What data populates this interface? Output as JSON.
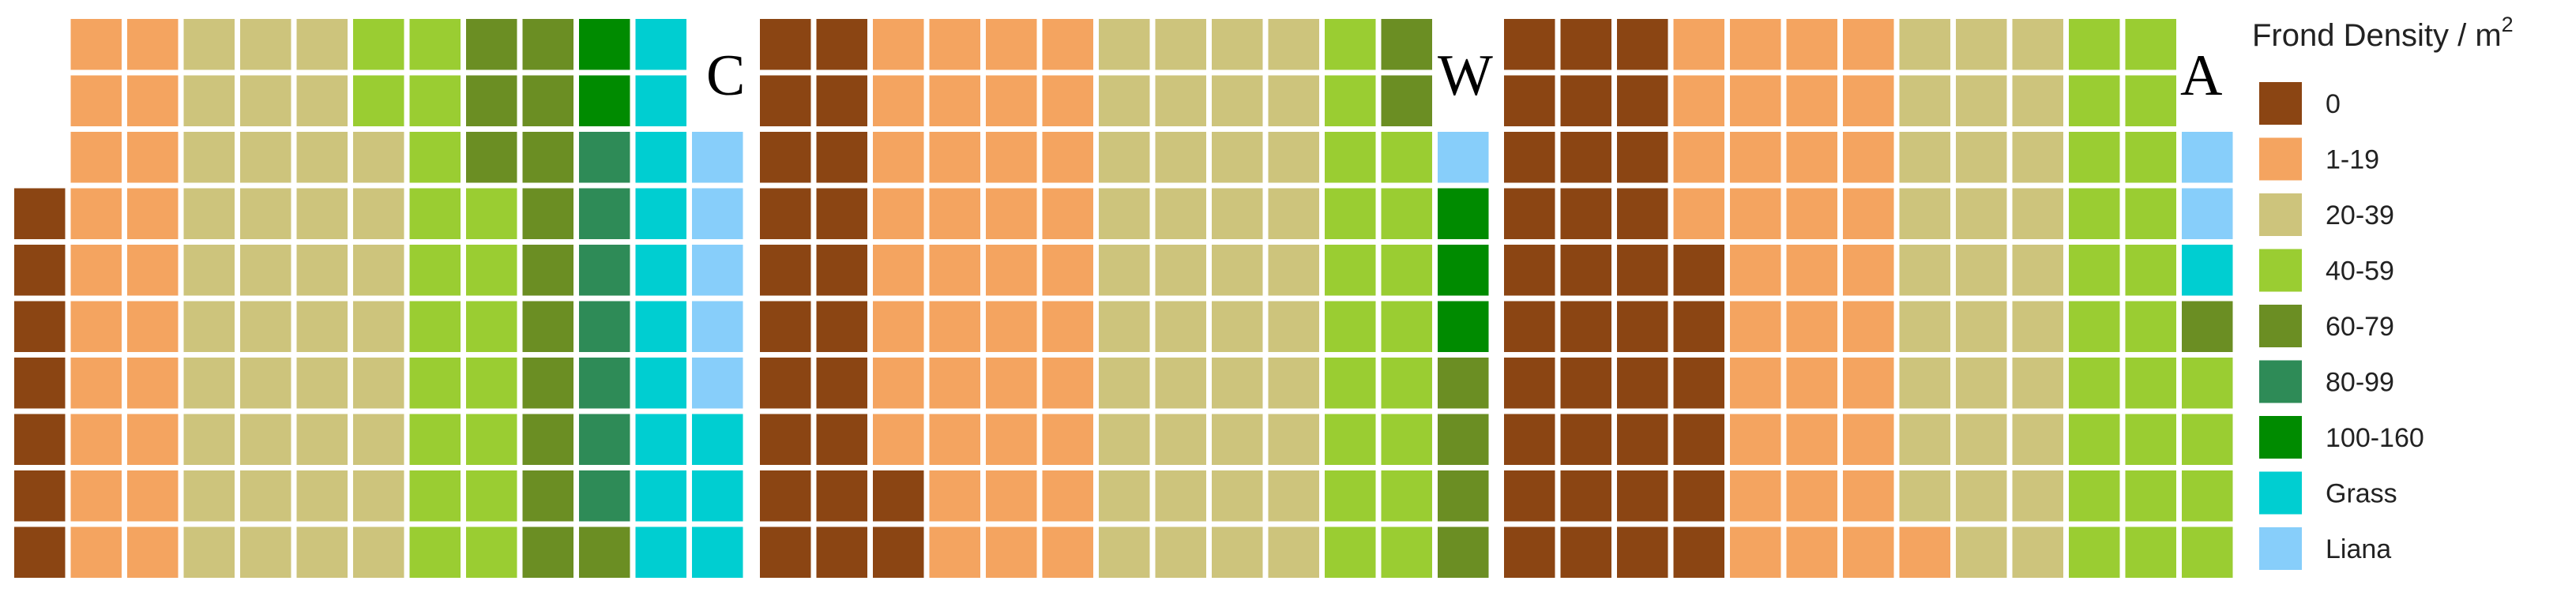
{
  "chart_data": {
    "type": "waffle",
    "legend": {
      "title": "Frond Density / m",
      "title_superscript": "2",
      "categories": [
        {
          "key": "0",
          "label": "0",
          "color": "#8B4513"
        },
        {
          "key": "1-19",
          "label": "1-19",
          "color": "#F4A460"
        },
        {
          "key": "20-39",
          "label": "20-39",
          "color": "#CDC47C"
        },
        {
          "key": "40-59",
          "label": "40-59",
          "color": "#9ACD32"
        },
        {
          "key": "60-79",
          "label": "60-79",
          "color": "#6B8E23"
        },
        {
          "key": "80-99",
          "label": "80-99",
          "color": "#2E8B57"
        },
        {
          "key": "100-160",
          "label": "100-160",
          "color": "#008B00"
        },
        {
          "key": "Grass",
          "label": "Grass",
          "color": "#00CED1"
        },
        {
          "key": "Liana",
          "label": "Liana",
          "color": "#87CEFA"
        }
      ]
    },
    "panels": [
      {
        "label": "C",
        "rows": 10,
        "columns": [
          [
            "",
            "",
            "",
            "0",
            "0",
            "0",
            "0",
            "0",
            "0",
            "0"
          ],
          [
            "1-19",
            "1-19",
            "1-19",
            "1-19",
            "1-19",
            "1-19",
            "1-19",
            "1-19",
            "1-19",
            "1-19"
          ],
          [
            "1-19",
            "1-19",
            "1-19",
            "1-19",
            "1-19",
            "1-19",
            "1-19",
            "1-19",
            "1-19",
            "1-19"
          ],
          [
            "20-39",
            "20-39",
            "20-39",
            "20-39",
            "20-39",
            "20-39",
            "20-39",
            "20-39",
            "20-39",
            "20-39"
          ],
          [
            "20-39",
            "20-39",
            "20-39",
            "20-39",
            "20-39",
            "20-39",
            "20-39",
            "20-39",
            "20-39",
            "20-39"
          ],
          [
            "20-39",
            "20-39",
            "20-39",
            "20-39",
            "20-39",
            "20-39",
            "20-39",
            "20-39",
            "20-39",
            "20-39"
          ],
          [
            "40-59",
            "40-59",
            "20-39",
            "20-39",
            "20-39",
            "20-39",
            "20-39",
            "20-39",
            "20-39",
            "20-39"
          ],
          [
            "40-59",
            "40-59",
            "40-59",
            "40-59",
            "40-59",
            "40-59",
            "40-59",
            "40-59",
            "40-59",
            "40-59"
          ],
          [
            "60-79",
            "60-79",
            "60-79",
            "40-59",
            "40-59",
            "40-59",
            "40-59",
            "40-59",
            "40-59",
            "40-59"
          ],
          [
            "60-79",
            "60-79",
            "60-79",
            "60-79",
            "60-79",
            "60-79",
            "60-79",
            "60-79",
            "60-79",
            "60-79"
          ],
          [
            "100-160",
            "100-160",
            "80-99",
            "80-99",
            "80-99",
            "80-99",
            "80-99",
            "80-99",
            "80-99",
            "60-79"
          ],
          [
            "Grass",
            "Grass",
            "Grass",
            "Grass",
            "Grass",
            "Grass",
            "Grass",
            "Grass",
            "Grass",
            "Grass"
          ],
          [
            "",
            "",
            "Liana",
            "Liana",
            "Liana",
            "Liana",
            "Liana",
            "Grass",
            "Grass",
            "Grass"
          ]
        ]
      },
      {
        "label": "W",
        "rows": 10,
        "columns": [
          [
            "0",
            "0",
            "0",
            "0",
            "0",
            "0",
            "0",
            "0",
            "0",
            "0"
          ],
          [
            "0",
            "0",
            "0",
            "0",
            "0",
            "0",
            "0",
            "0",
            "0",
            "0"
          ],
          [
            "1-19",
            "1-19",
            "1-19",
            "1-19",
            "1-19",
            "1-19",
            "1-19",
            "1-19",
            "0",
            "0"
          ],
          [
            "1-19",
            "1-19",
            "1-19",
            "1-19",
            "1-19",
            "1-19",
            "1-19",
            "1-19",
            "1-19",
            "1-19"
          ],
          [
            "1-19",
            "1-19",
            "1-19",
            "1-19",
            "1-19",
            "1-19",
            "1-19",
            "1-19",
            "1-19",
            "1-19"
          ],
          [
            "1-19",
            "1-19",
            "1-19",
            "1-19",
            "1-19",
            "1-19",
            "1-19",
            "1-19",
            "1-19",
            "1-19"
          ],
          [
            "20-39",
            "20-39",
            "20-39",
            "20-39",
            "20-39",
            "20-39",
            "20-39",
            "20-39",
            "20-39",
            "20-39"
          ],
          [
            "20-39",
            "20-39",
            "20-39",
            "20-39",
            "20-39",
            "20-39",
            "20-39",
            "20-39",
            "20-39",
            "20-39"
          ],
          [
            "20-39",
            "20-39",
            "20-39",
            "20-39",
            "20-39",
            "20-39",
            "20-39",
            "20-39",
            "20-39",
            "20-39"
          ],
          [
            "20-39",
            "20-39",
            "20-39",
            "20-39",
            "20-39",
            "20-39",
            "20-39",
            "20-39",
            "20-39",
            "20-39"
          ],
          [
            "40-59",
            "40-59",
            "40-59",
            "40-59",
            "40-59",
            "40-59",
            "40-59",
            "40-59",
            "40-59",
            "40-59"
          ],
          [
            "60-79",
            "60-79",
            "40-59",
            "40-59",
            "40-59",
            "40-59",
            "40-59",
            "40-59",
            "40-59",
            "40-59"
          ],
          [
            "",
            "",
            "Liana",
            "100-160",
            "100-160",
            "100-160",
            "60-79",
            "60-79",
            "60-79",
            "60-79"
          ]
        ]
      },
      {
        "label": "A",
        "rows": 10,
        "columns": [
          [
            "0",
            "0",
            "0",
            "0",
            "0",
            "0",
            "0",
            "0",
            "0",
            "0"
          ],
          [
            "0",
            "0",
            "0",
            "0",
            "0",
            "0",
            "0",
            "0",
            "0",
            "0"
          ],
          [
            "0",
            "0",
            "0",
            "0",
            "0",
            "0",
            "0",
            "0",
            "0",
            "0"
          ],
          [
            "1-19",
            "1-19",
            "1-19",
            "1-19",
            "0",
            "0",
            "0",
            "0",
            "0",
            "0"
          ],
          [
            "1-19",
            "1-19",
            "1-19",
            "1-19",
            "1-19",
            "1-19",
            "1-19",
            "1-19",
            "1-19",
            "1-19"
          ],
          [
            "1-19",
            "1-19",
            "1-19",
            "1-19",
            "1-19",
            "1-19",
            "1-19",
            "1-19",
            "1-19",
            "1-19"
          ],
          [
            "1-19",
            "1-19",
            "1-19",
            "1-19",
            "1-19",
            "1-19",
            "1-19",
            "1-19",
            "1-19",
            "1-19"
          ],
          [
            "20-39",
            "20-39",
            "20-39",
            "20-39",
            "20-39",
            "20-39",
            "20-39",
            "20-39",
            "20-39",
            "1-19"
          ],
          [
            "20-39",
            "20-39",
            "20-39",
            "20-39",
            "20-39",
            "20-39",
            "20-39",
            "20-39",
            "20-39",
            "20-39"
          ],
          [
            "20-39",
            "20-39",
            "20-39",
            "20-39",
            "20-39",
            "20-39",
            "20-39",
            "20-39",
            "20-39",
            "20-39"
          ],
          [
            "40-59",
            "40-59",
            "40-59",
            "40-59",
            "40-59",
            "40-59",
            "40-59",
            "40-59",
            "40-59",
            "40-59"
          ],
          [
            "40-59",
            "40-59",
            "40-59",
            "40-59",
            "40-59",
            "40-59",
            "40-59",
            "40-59",
            "40-59",
            "40-59"
          ],
          [
            "",
            "",
            "Liana",
            "Liana",
            "Grass",
            "60-79",
            "40-59",
            "40-59",
            "40-59",
            "40-59"
          ]
        ]
      }
    ]
  }
}
